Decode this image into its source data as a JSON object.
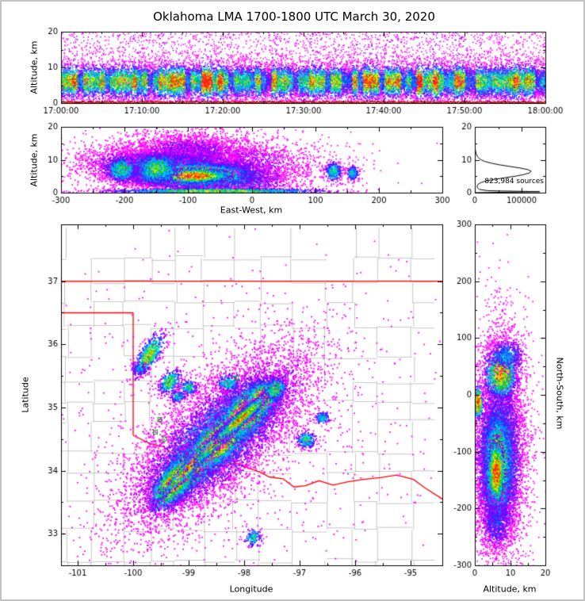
{
  "title": "Oklahoma LMA 1700-1800 UTC March 30, 2020",
  "colors": {
    "frame_border": "#c3c3c3",
    "background": "#ffffff",
    "axis": "#000000",
    "county_line": "#b8b8b8",
    "state_border": "#ff0000",
    "station_marker": "#00aa00",
    "ground_sources": [
      "#b01000",
      "#d42400",
      "#8f0e00"
    ],
    "density_ramp": [
      "#ff00ff",
      "#8800ff",
      "#2a2aff",
      "#0090ff",
      "#00e0e0",
      "#00c232",
      "#7ce600",
      "#ffee00",
      "#ff9900",
      "#ff2000"
    ]
  },
  "chart_data": [
    {
      "id": "time_height",
      "type": "scatter",
      "xlabel": "",
      "ylabel": "Altitude, km",
      "xlim": [
        0,
        3600
      ],
      "ylim": [
        0,
        20
      ],
      "x_ticks": [
        0,
        600,
        1200,
        1800,
        2400,
        3000,
        3600
      ],
      "x_tick_labels": [
        "17:00:00",
        "17:10:00",
        "17:20:00",
        "17:30:00",
        "17:40:00",
        "17:50:00",
        "18:00:00"
      ],
      "y_ticks": [
        0,
        10,
        20
      ],
      "structure": {
        "n": 26000,
        "band_mean_km": 6.2,
        "band_sigma_km": 2.5,
        "tail_frac": 0.13,
        "column_seconds": 40,
        "ground_km": 0.45
      }
    },
    {
      "id": "east_west",
      "type": "scatter",
      "xlabel": "East-West, km",
      "ylabel": "Altitude, km",
      "xlim": [
        -300,
        300
      ],
      "ylim": [
        0,
        20
      ],
      "x_ticks": [
        -300,
        -200,
        -100,
        0,
        100,
        200,
        300
      ],
      "y_ticks": [
        0,
        10,
        20
      ],
      "blobs": [
        {
          "x": -80,
          "y": 8.5,
          "sx": 95,
          "sy": 4.2,
          "angle": 0,
          "w": 0.18,
          "n": 4500
        },
        {
          "x": -100,
          "y": 12.5,
          "sx": 50,
          "sy": 3.2,
          "angle": 0,
          "w": 0.14,
          "n": 2200
        },
        {
          "x": -100,
          "y": 6.2,
          "sx": 68,
          "sy": 2.6,
          "angle": -1,
          "w": 0.55,
          "n": 6500
        },
        {
          "x": -95,
          "y": 5.6,
          "sx": 46,
          "sy": 1.7,
          "angle": 0,
          "w": 0.9,
          "n": 5200
        },
        {
          "x": -92,
          "y": 5.3,
          "sx": 27,
          "sy": 1.05,
          "angle": 0,
          "w": 1.0,
          "n": 2400
        },
        {
          "x": -205,
          "y": 7.2,
          "sx": 13,
          "sy": 2.0,
          "angle": 0,
          "w": 0.55,
          "n": 650
        },
        {
          "x": -150,
          "y": 7.5,
          "sx": 18,
          "sy": 2.4,
          "angle": 0,
          "w": 0.6,
          "n": 900
        },
        {
          "x": 128,
          "y": 6.6,
          "sx": 7,
          "sy": 1.5,
          "angle": 0,
          "w": 0.5,
          "n": 320
        },
        {
          "x": 158,
          "y": 6.1,
          "sx": 5,
          "sy": 1.2,
          "angle": 0,
          "w": 0.45,
          "n": 200
        },
        {
          "x": -55,
          "y": 0.7,
          "sx": 85,
          "sy": 0.4,
          "angle": 0,
          "w": 0.7,
          "n": 1500
        }
      ]
    },
    {
      "id": "histogram",
      "type": "line",
      "annotation": "823,984 sources",
      "xlim": [
        0,
        150000
      ],
      "ylim": [
        0,
        20
      ],
      "x_ticks": [
        0,
        100000
      ],
      "x_tick_labels": [
        "0",
        "100000"
      ],
      "y_ticks": [
        0,
        10,
        20
      ],
      "values": [
        [
          0,
          800
        ],
        [
          0.3,
          138000
        ],
        [
          0.6,
          28000
        ],
        [
          1,
          9000
        ],
        [
          1.5,
          5500
        ],
        [
          2,
          5000
        ],
        [
          2.5,
          6500
        ],
        [
          3,
          12000
        ],
        [
          3.5,
          22000
        ],
        [
          4,
          40000
        ],
        [
          4.5,
          62000
        ],
        [
          5,
          86000
        ],
        [
          5.5,
          104000
        ],
        [
          6,
          116000
        ],
        [
          6.5,
          120000
        ],
        [
          7,
          113000
        ],
        [
          7.5,
          96000
        ],
        [
          8,
          73000
        ],
        [
          8.5,
          51000
        ],
        [
          9,
          34000
        ],
        [
          9.5,
          21000
        ],
        [
          10,
          13000
        ],
        [
          10.5,
          8500
        ],
        [
          11,
          5500
        ],
        [
          12,
          2400
        ],
        [
          13,
          1100
        ],
        [
          14,
          500
        ],
        [
          15,
          250
        ],
        [
          16,
          120
        ],
        [
          17,
          60
        ],
        [
          18,
          30
        ],
        [
          19,
          12
        ],
        [
          20,
          5
        ]
      ]
    },
    {
      "id": "plan_view",
      "type": "scatter",
      "xlabel": "Longitude",
      "ylabel": "Latitude",
      "xlim": [
        -101.3,
        -94.43
      ],
      "ylim": [
        32.5,
        37.9
      ],
      "x_ticks": [
        -101,
        -100,
        -99,
        -98,
        -97,
        -96,
        -95
      ],
      "y_ticks": [
        33,
        34,
        35,
        36,
        37
      ],
      "stations": [
        [
          -99.52,
          34.81
        ],
        [
          -99.6,
          34.61
        ],
        [
          -99.44,
          34.5
        ],
        [
          -98.14,
          35.47
        ]
      ],
      "state_borders": [
        [
          [
            -101.3,
            37.0
          ],
          [
            -94.43,
            37.0
          ]
        ],
        [
          [
            -101.3,
            36.5
          ],
          [
            -100.0,
            36.5
          ]
        ],
        [
          [
            -100.0,
            36.5
          ],
          [
            -100.0,
            34.56
          ]
        ],
        [
          [
            -100.0,
            34.56
          ],
          [
            -99.7,
            34.43
          ],
          [
            -99.45,
            34.38
          ],
          [
            -99.2,
            34.21
          ],
          [
            -98.95,
            34.21
          ],
          [
            -98.65,
            34.13
          ],
          [
            -98.45,
            34.06
          ],
          [
            -98.15,
            34.12
          ],
          [
            -97.95,
            34.05
          ],
          [
            -97.7,
            33.97
          ],
          [
            -97.55,
            33.9
          ],
          [
            -97.3,
            33.87
          ],
          [
            -97.1,
            33.74
          ],
          [
            -96.9,
            33.76
          ],
          [
            -96.65,
            33.84
          ],
          [
            -96.4,
            33.77
          ],
          [
            -96.15,
            33.82
          ],
          [
            -95.85,
            33.86
          ],
          [
            -95.55,
            33.89
          ],
          [
            -95.25,
            33.93
          ],
          [
            -94.95,
            33.86
          ],
          [
            -94.75,
            33.73
          ],
          [
            -94.43,
            33.55
          ]
        ]
      ],
      "blobs": [
        {
          "x": -98.45,
          "y": 34.55,
          "sx": 1.05,
          "sy": 0.45,
          "angle": 38,
          "w": 0.16,
          "n": 5000
        },
        {
          "x": -98.5,
          "y": 34.5,
          "sx": 0.85,
          "sy": 0.3,
          "angle": 38,
          "w": 0.5,
          "n": 5200
        },
        {
          "x": -99.0,
          "y": 34.05,
          "sx": 0.34,
          "sy": 0.15,
          "angle": 40,
          "w": 1.0,
          "n": 3200
        },
        {
          "x": -98.45,
          "y": 34.5,
          "sx": 0.36,
          "sy": 0.16,
          "angle": 38,
          "w": 0.95,
          "n": 3200
        },
        {
          "x": -97.95,
          "y": 34.95,
          "sx": 0.3,
          "sy": 0.17,
          "angle": 38,
          "w": 0.9,
          "n": 2600
        },
        {
          "x": -97.7,
          "y": 35.15,
          "sx": 0.18,
          "sy": 0.13,
          "angle": 38,
          "w": 0.8,
          "n": 1200
        },
        {
          "x": -99.28,
          "y": 33.82,
          "sx": 0.27,
          "sy": 0.13,
          "angle": 45,
          "w": 0.9,
          "n": 1600
        },
        {
          "x": -98.85,
          "y": 34.2,
          "sx": 0.45,
          "sy": 0.05,
          "angle": 42,
          "w": 0.95,
          "n": 1400
        },
        {
          "x": -98.35,
          "y": 34.6,
          "sx": 0.4,
          "sy": 0.05,
          "angle": 40,
          "w": 0.9,
          "n": 1200
        },
        {
          "x": -98.05,
          "y": 34.85,
          "sx": 0.3,
          "sy": 0.05,
          "angle": 38,
          "w": 0.85,
          "n": 900
        },
        {
          "x": -99.72,
          "y": 35.85,
          "sx": 0.2,
          "sy": 0.08,
          "angle": 55,
          "w": 0.7,
          "n": 650
        },
        {
          "x": -99.9,
          "y": 35.62,
          "sx": 0.07,
          "sy": 0.05,
          "angle": 0,
          "w": 0.4,
          "n": 130
        },
        {
          "x": -99.35,
          "y": 35.42,
          "sx": 0.12,
          "sy": 0.08,
          "angle": 40,
          "w": 0.6,
          "n": 320
        },
        {
          "x": -99.02,
          "y": 35.33,
          "sx": 0.09,
          "sy": 0.06,
          "angle": 0,
          "w": 0.5,
          "n": 200
        },
        {
          "x": -99.2,
          "y": 35.18,
          "sx": 0.07,
          "sy": 0.05,
          "angle": 0,
          "w": 0.45,
          "n": 130
        },
        {
          "x": -98.3,
          "y": 35.4,
          "sx": 0.12,
          "sy": 0.08,
          "angle": 0,
          "w": 0.45,
          "n": 220
        },
        {
          "x": -97.45,
          "y": 35.3,
          "sx": 0.12,
          "sy": 0.09,
          "angle": 38,
          "w": 0.6,
          "n": 300
        },
        {
          "x": -96.9,
          "y": 34.5,
          "sx": 0.09,
          "sy": 0.07,
          "angle": 0,
          "w": 0.55,
          "n": 260
        },
        {
          "x": -96.6,
          "y": 34.85,
          "sx": 0.07,
          "sy": 0.05,
          "angle": 0,
          "w": 0.45,
          "n": 150
        },
        {
          "x": -97.85,
          "y": 32.95,
          "sx": 0.08,
          "sy": 0.07,
          "angle": 0,
          "w": 0.5,
          "n": 150
        },
        {
          "x": -98.2,
          "y": 34.8,
          "sx": 1.9,
          "sy": 1.3,
          "angle": 0,
          "w": 0.05,
          "n": 900
        }
      ]
    },
    {
      "id": "north_south",
      "type": "scatter",
      "xlabel": "Altitude, km",
      "ylabel_right": "North-South, km",
      "xlim": [
        0,
        20
      ],
      "ylim": [
        -300,
        300
      ],
      "x_ticks": [
        0,
        10,
        20
      ],
      "y_ticks": [
        -300,
        -200,
        -100,
        0,
        100,
        200,
        300
      ],
      "blobs": [
        {
          "x": 7,
          "y": -80,
          "sx": 4.2,
          "sy": 105,
          "angle": 0,
          "w": 0.18,
          "n": 4200
        },
        {
          "x": 6.5,
          "y": -115,
          "sx": 2.9,
          "sy": 62,
          "angle": 0,
          "w": 0.55,
          "n": 5500
        },
        {
          "x": 6.2,
          "y": -125,
          "sx": 1.8,
          "sy": 45,
          "angle": 0,
          "w": 0.9,
          "n": 3800
        },
        {
          "x": 5.9,
          "y": -135,
          "sx": 1.15,
          "sy": 27,
          "angle": 0,
          "w": 1.0,
          "n": 1500
        },
        {
          "x": 7.2,
          "y": 38,
          "sx": 2.3,
          "sy": 22,
          "angle": 0,
          "w": 0.8,
          "n": 1300
        },
        {
          "x": 9,
          "y": 70,
          "sx": 2.5,
          "sy": 15,
          "angle": 0,
          "w": 0.35,
          "n": 500
        },
        {
          "x": 0.8,
          "y": -12,
          "sx": 0.6,
          "sy": 14,
          "angle": 0,
          "w": 1.0,
          "n": 320
        },
        {
          "x": 6,
          "y": -225,
          "sx": 2.5,
          "sy": 25,
          "angle": 0,
          "w": 0.25,
          "n": 600
        }
      ]
    }
  ]
}
